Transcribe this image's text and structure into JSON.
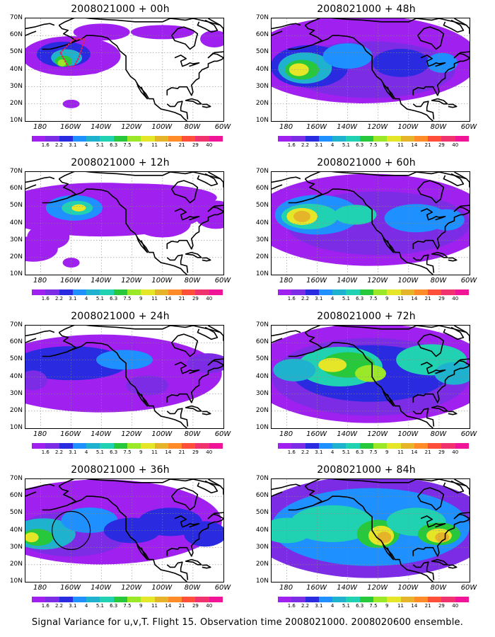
{
  "figure": {
    "caption": "Signal Variance for u,v,T. Flight 15. Observation time 2008021000. 2008020600 ensemble.",
    "lat_labels": [
      "70N",
      "60N",
      "50N",
      "40N",
      "30N",
      "20N",
      "10N"
    ],
    "lon_labels": [
      "180",
      "160W",
      "140W",
      "120W",
      "100W",
      "80W",
      "60W"
    ],
    "colorbar_labels": [
      "1.6",
      "2.2",
      "3.1",
      "4",
      "5.1",
      "6.3",
      "7.5",
      "9",
      "11",
      "14",
      "21",
      "29",
      "40"
    ],
    "colorbar_colors": [
      "#a020f0",
      "#7d2ce6",
      "#2a2ae0",
      "#1e90ff",
      "#1fb2cf",
      "#20d2b2",
      "#28c83c",
      "#9be828",
      "#e6e628",
      "#e6b428",
      "#ff8c28",
      "#ff4f3a",
      "#f0326e",
      "#f01496"
    ],
    "panels": [
      {
        "title": "2008021000 + 00h",
        "forecast_hour": 0,
        "marker": "dotted-box"
      },
      {
        "title": "2008021000 + 48h",
        "forecast_hour": 48
      },
      {
        "title": "2008021000 + 12h",
        "forecast_hour": 12
      },
      {
        "title": "2008021000 + 60h",
        "forecast_hour": 60
      },
      {
        "title": "2008021000 + 24h",
        "forecast_hour": 24
      },
      {
        "title": "2008021000 + 72h",
        "forecast_hour": 72
      },
      {
        "title": "2008021000 + 36h",
        "forecast_hour": 36,
        "marker": "circle"
      },
      {
        "title": "2008021000 + 84h",
        "forecast_hour": 84
      }
    ]
  }
}
